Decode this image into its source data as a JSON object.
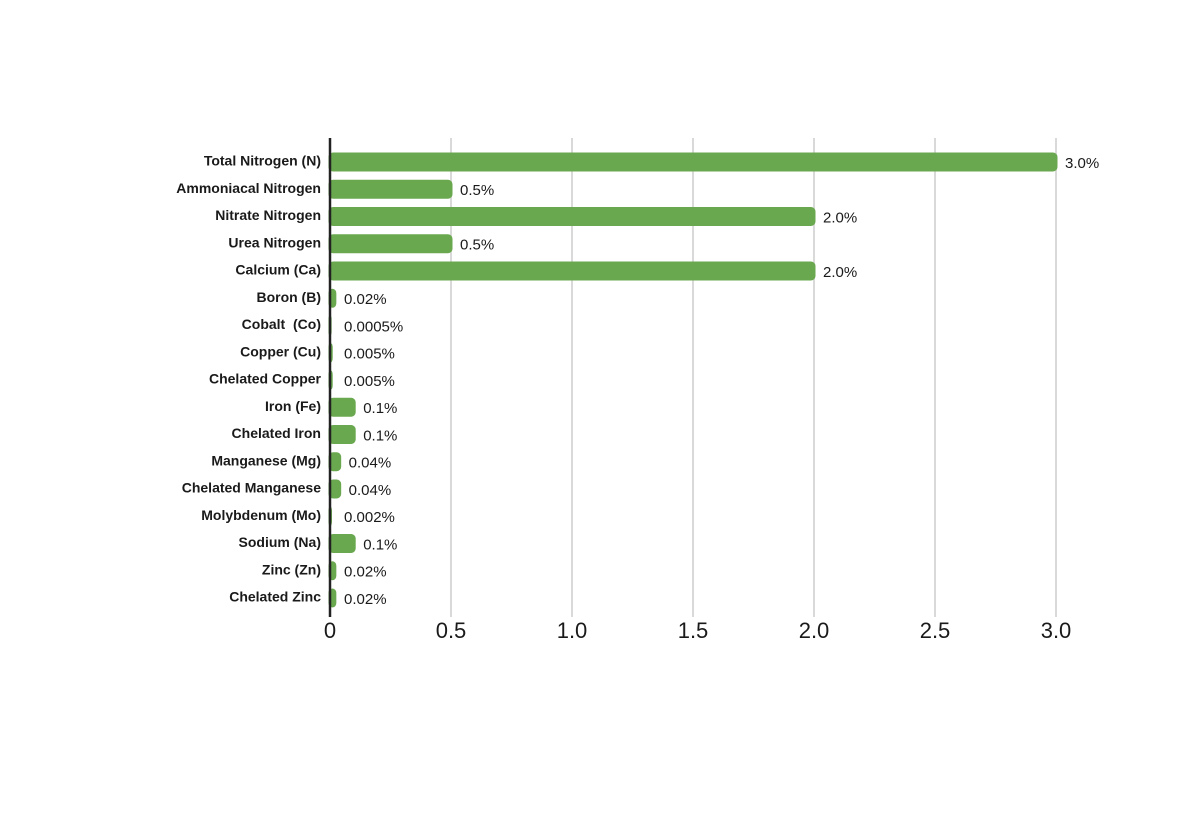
{
  "chart_data": {
    "type": "hbar",
    "categories": [
      "Total Nitrogen (N)",
      "Ammoniacal Nitrogen",
      "Nitrate Nitrogen",
      "Urea Nitrogen",
      "Calcium (Ca)",
      "Boron (B)",
      "Cobalt  (Co)",
      "Copper (Cu)",
      "Chelated Copper",
      "Iron (Fe)",
      "Chelated Iron",
      "Manganese (Mg)",
      "Chelated Manganese",
      "Molybdenum (Mo)",
      "Sodium (Na)",
      "Zinc (Zn)",
      "Chelated Zinc"
    ],
    "values": [
      3.0,
      0.5,
      2.0,
      0.5,
      2.0,
      0.02,
      0.0005,
      0.005,
      0.005,
      0.1,
      0.1,
      0.04,
      0.04,
      0.002,
      0.1,
      0.02,
      0.02
    ],
    "value_labels": [
      "3.0%",
      "0.5%",
      "2.0%",
      "0.5%",
      "2.0%",
      "0.02%",
      "0.0005%",
      "0.005%",
      "0.005%",
      "0.1%",
      "0.1%",
      "0.04%",
      "0.04%",
      "0.002%",
      "0.1%",
      "0.02%",
      "0.02%"
    ],
    "color": "#6aa84f",
    "xlim": [
      0,
      3.0
    ],
    "xticks": [
      0,
      0.5,
      {
        "value": 1.0,
        "label": "1.0"
      },
      1.5,
      {
        "value": 2.0,
        "label": "2.0"
      },
      2.5,
      {
        "value": 3.0,
        "label": "3.0"
      }
    ],
    "grid": true
  }
}
